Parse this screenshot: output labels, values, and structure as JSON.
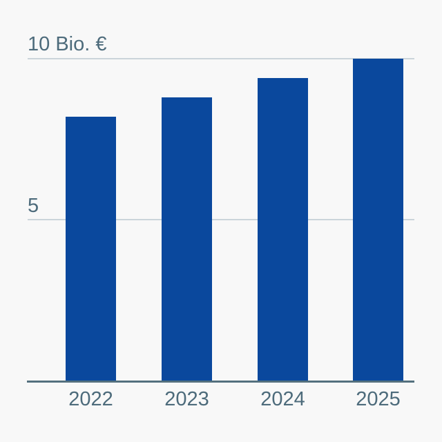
{
  "chart": {
    "background": "#f8f8f8",
    "bar_color": "#0a489d",
    "text_color": "#4d6b7b",
    "gridline_color": "#cbd4da",
    "axis_color": "#54707e",
    "y_axis": {
      "top_label": "10 Bio. €",
      "mid_label": "5"
    }
  },
  "chart_data": {
    "type": "bar",
    "categories": [
      "2022",
      "2023",
      "2024",
      "2025"
    ],
    "values": [
      8.2,
      8.8,
      9.4,
      10.0
    ],
    "title": "",
    "xlabel": "",
    "ylabel": "Bio. €",
    "ylim": [
      0,
      10
    ],
    "gridlines": [
      5,
      10
    ],
    "gridline_labels": [
      "5",
      "10 Bio. €"
    ],
    "grid": true,
    "legend": "none",
    "unit": "Bio. €"
  }
}
